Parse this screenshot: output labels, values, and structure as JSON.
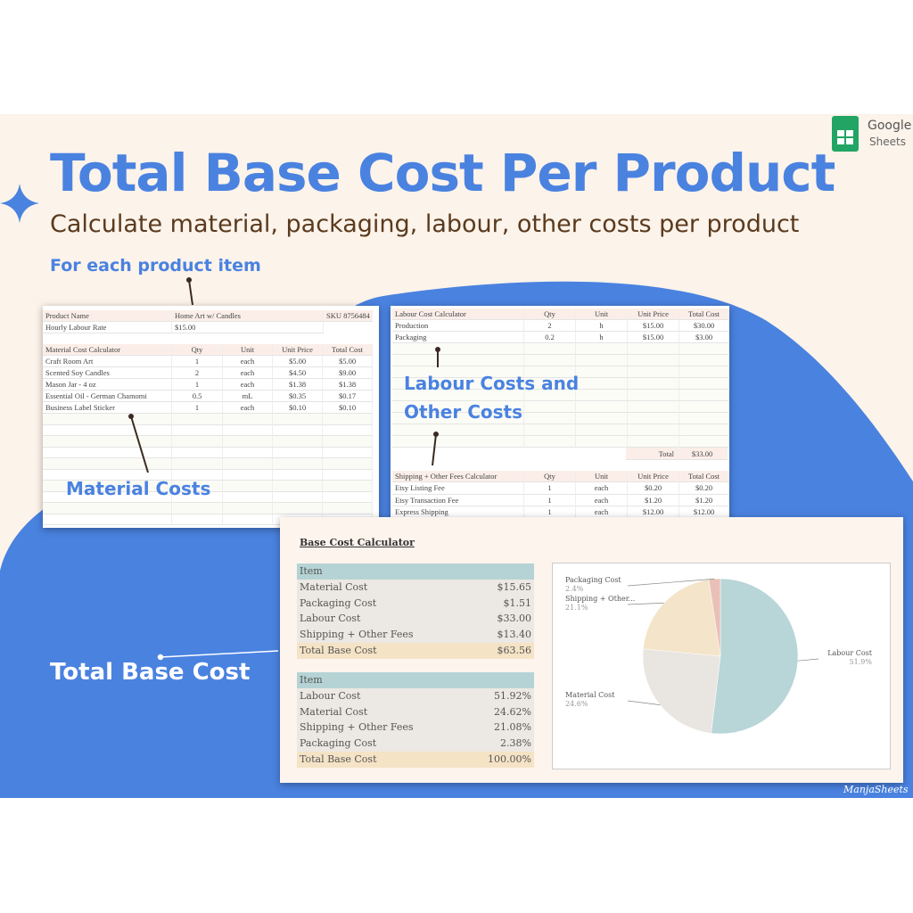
{
  "header": {
    "title": "Total Base Cost Per Product",
    "subtitle": "Calculate material, packaging, labour, other costs per product",
    "section": "For each product item",
    "brand": "Google",
    "brand_product": "Sheets"
  },
  "callouts": {
    "material": "Material Costs",
    "labour": [
      "Labour Costs and",
      "Other Costs"
    ],
    "total": "Total Base Cost"
  },
  "product_sheet": {
    "info": [
      [
        "Product Name",
        "Home Art w/ Candles",
        "SKU 8756484"
      ],
      [
        "Hourly Labour Rate",
        "$15.00"
      ]
    ],
    "material_header": [
      "Material Cost Calculator",
      "Qty",
      "Unit",
      "Unit Price",
      "Total Cost"
    ],
    "material_rows": [
      [
        "Craft Room Art",
        "1",
        "each",
        "$5.00",
        "$5.00"
      ],
      [
        "Scented Soy Candles",
        "2",
        "each",
        "$4.50",
        "$9.00"
      ],
      [
        "Mason Jar - 4 oz",
        "1",
        "each",
        "$1.38",
        "$1.38"
      ],
      [
        "Essential Oil - German Chamomi",
        "0.5",
        "mL",
        "$0.35",
        "$0.17"
      ],
      [
        "Business Label Sticker",
        "1",
        "each",
        "$0.10",
        "$0.10"
      ]
    ]
  },
  "labour_sheet": {
    "labour_header": [
      "Labour Cost Calculator",
      "Qty",
      "Unit",
      "Unit Price",
      "Total Cost"
    ],
    "labour_rows": [
      [
        "Production",
        "2",
        "h",
        "$15.00",
        "$30.00"
      ],
      [
        "Packaging",
        "0.2",
        "h",
        "$15.00",
        "$3.00"
      ]
    ],
    "total": [
      "Total",
      "$33.00"
    ],
    "fees_header": [
      "Shipping + Other Fees Calculator",
      "Qty",
      "Unit",
      "Unit Price",
      "Total Cost"
    ],
    "fees_rows": [
      [
        "Etsy Listing Fee",
        "1",
        "each",
        "$0.20",
        "$0.20"
      ],
      [
        "Etsy Transaction Fee",
        "1",
        "each",
        "$1.20",
        "$1.20"
      ],
      [
        "Express Shipping",
        "1",
        "each",
        "$12.00",
        "$12.00"
      ]
    ]
  },
  "base_cost": {
    "title": "Base Cost Calculator",
    "cost_header": "Item",
    "cost_rows": [
      [
        "Material Cost",
        "$15.65"
      ],
      [
        "Packaging Cost",
        "$1.51"
      ],
      [
        "Labour Cost",
        "$33.00"
      ],
      [
        "Shipping + Other Fees",
        "$13.40"
      ]
    ],
    "cost_total": [
      "Total Base Cost",
      "$63.56"
    ],
    "share_header": "Item",
    "share_rows": [
      [
        "Labour Cost",
        "51.92%"
      ],
      [
        "Material Cost",
        "24.62%"
      ],
      [
        "Shipping + Other Fees",
        "21.08%"
      ],
      [
        "Packaging Cost",
        "2.38%"
      ]
    ],
    "share_total": [
      "Total Base Cost",
      "100.00%"
    ]
  },
  "chart_data": {
    "type": "pie",
    "categories": [
      "Labour Cost",
      "Material Cost",
      "Shipping + Other...",
      "Packaging Cost"
    ],
    "values": [
      51.9,
      24.6,
      21.1,
      2.4
    ],
    "value_labels": [
      "51.9%",
      "24.6%",
      "21.1%",
      "2.4%"
    ],
    "colors": [
      "#b8d5d8",
      "#e9e5e0",
      "#f4e4c9",
      "#e9c0b7"
    ]
  },
  "watermark": "ManjaSheets"
}
